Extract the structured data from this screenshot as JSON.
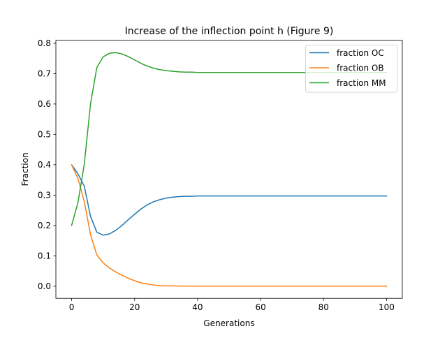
{
  "chart_data": {
    "type": "line",
    "title": "Increase of the inflection point h (Figure 9)",
    "xlabel": "Generations",
    "ylabel": "Fraction",
    "xlim": [
      -5,
      105
    ],
    "ylim": [
      -0.04,
      0.81
    ],
    "x_ticks": [
      0,
      20,
      40,
      60,
      80,
      100
    ],
    "y_ticks": [
      0.0,
      0.1,
      0.2,
      0.3,
      0.4,
      0.5,
      0.6,
      0.7,
      0.8
    ],
    "x_tick_labels": [
      "0",
      "20",
      "40",
      "60",
      "80",
      "100"
    ],
    "y_tick_labels": [
      "0.0",
      "0.1",
      "0.2",
      "0.3",
      "0.4",
      "0.5",
      "0.6",
      "0.7",
      "0.8"
    ],
    "grid": false,
    "legend_position": "top-right",
    "x": [
      0,
      2,
      4,
      6,
      8,
      10,
      12,
      14,
      16,
      18,
      20,
      22,
      24,
      26,
      28,
      30,
      32,
      34,
      36,
      38,
      40,
      45,
      50,
      55,
      60,
      65,
      70,
      75,
      80,
      85,
      90,
      95,
      100
    ],
    "series": [
      {
        "name": "fraction OC",
        "color": "#1f77b4",
        "values": [
          0.4,
          0.37,
          0.33,
          0.23,
          0.178,
          0.168,
          0.172,
          0.184,
          0.2,
          0.219,
          0.237,
          0.254,
          0.268,
          0.278,
          0.285,
          0.29,
          0.293,
          0.295,
          0.296,
          0.296,
          0.297,
          0.297,
          0.297,
          0.297,
          0.297,
          0.297,
          0.297,
          0.297,
          0.297,
          0.297,
          0.297,
          0.297,
          0.297
        ]
      },
      {
        "name": "fraction OB",
        "color": "#ff7f0e",
        "values": [
          0.4,
          0.355,
          0.28,
          0.17,
          0.103,
          0.077,
          0.06,
          0.047,
          0.036,
          0.026,
          0.018,
          0.011,
          0.007,
          0.004,
          0.002,
          0.001,
          0.001,
          0.0005,
          0.0003,
          0.0001,
          0.0,
          0.0,
          0.0,
          0.0,
          0.0,
          0.0,
          0.0,
          0.0,
          0.0,
          0.0,
          0.0,
          0.0,
          0.0
        ]
      },
      {
        "name": "fraction MM",
        "color": "#2ca02c",
        "values": [
          0.2,
          0.275,
          0.4,
          0.6,
          0.72,
          0.755,
          0.767,
          0.769,
          0.765,
          0.756,
          0.745,
          0.734,
          0.725,
          0.718,
          0.713,
          0.71,
          0.708,
          0.706,
          0.705,
          0.705,
          0.704,
          0.704,
          0.704,
          0.704,
          0.704,
          0.704,
          0.704,
          0.704,
          0.704,
          0.704,
          0.704,
          0.704,
          0.704
        ]
      }
    ]
  }
}
